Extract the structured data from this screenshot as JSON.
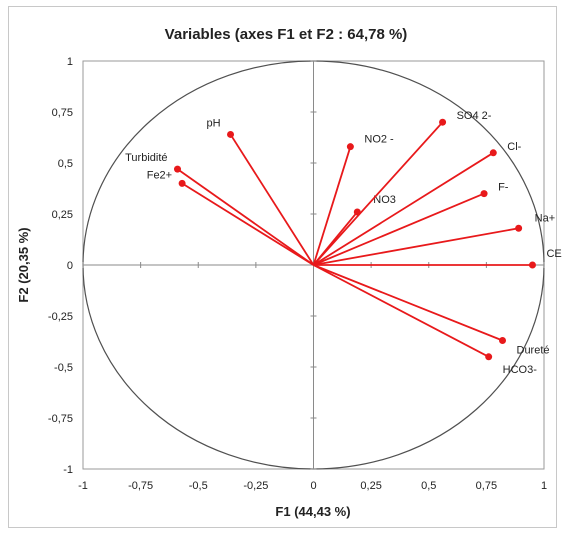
{
  "chart_data": {
    "type": "scatter",
    "title": "Variables (axes F1 et F2 : 64,78 %)",
    "xlabel": "F1 (44,43 %)",
    "ylabel": "F2 (20,35 %)",
    "xlim": [
      -1,
      1
    ],
    "ylim": [
      -1,
      1
    ],
    "x_ticks": [
      "-1",
      "-0,75",
      "-0,5",
      "-0,25",
      "0",
      "0,25",
      "0,5",
      "0,75",
      "1"
    ],
    "y_ticks": [
      "1",
      "0,75",
      "0,5",
      "0,25",
      "0",
      "-0,25",
      "-0,5",
      "-0,75",
      "-1"
    ],
    "grid": false,
    "correlation_circle": true,
    "line_color": "#e8191b",
    "circle_color": "#505050",
    "variables": [
      {
        "name": "pH",
        "x": -0.36,
        "y": 0.64
      },
      {
        "name": "Turbidité",
        "x": -0.59,
        "y": 0.47
      },
      {
        "name": "Fe2+",
        "x": -0.57,
        "y": 0.4
      },
      {
        "name": "NO2 -",
        "x": 0.16,
        "y": 0.58
      },
      {
        "name": "NO3",
        "x": 0.19,
        "y": 0.26
      },
      {
        "name": "SO4 2-",
        "x": 0.56,
        "y": 0.7
      },
      {
        "name": "Cl-",
        "x": 0.78,
        "y": 0.55
      },
      {
        "name": "F-",
        "x": 0.74,
        "y": 0.35
      },
      {
        "name": "Na+",
        "x": 0.89,
        "y": 0.18
      },
      {
        "name": "CE",
        "x": 0.95,
        "y": 0.0
      },
      {
        "name": "Dureté",
        "x": 0.82,
        "y": -0.37
      },
      {
        "name": "HCO3-",
        "x": 0.76,
        "y": -0.45
      }
    ]
  }
}
